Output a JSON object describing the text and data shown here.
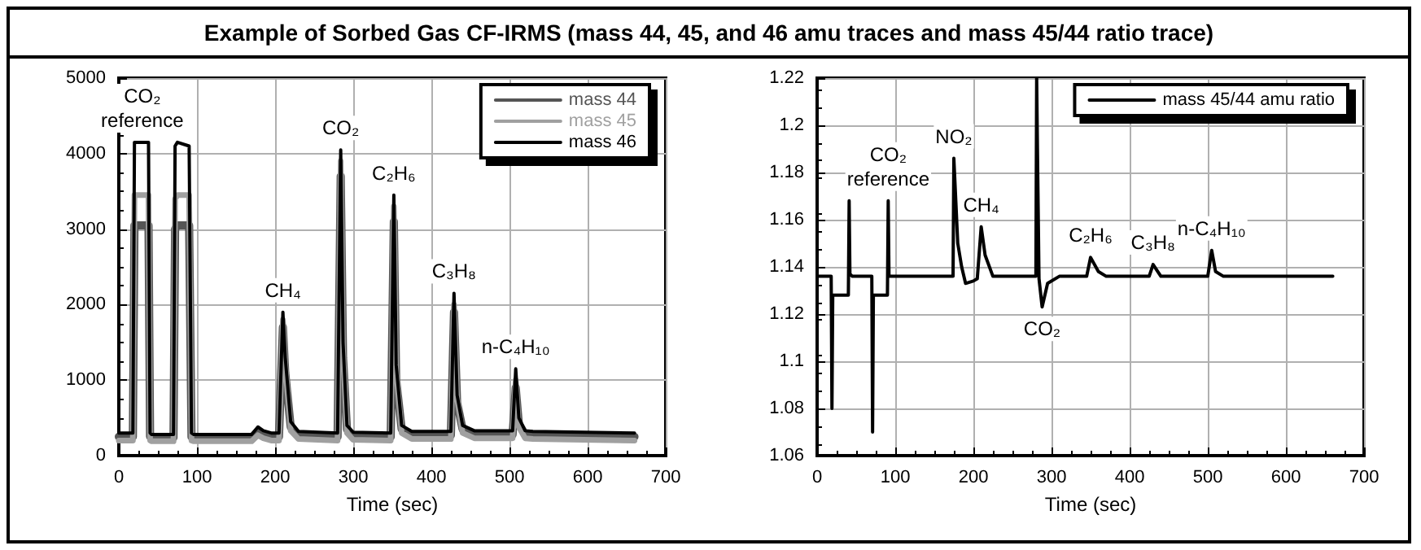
{
  "chart_data": [
    {
      "type": "line",
      "title": "Example of Sorbed Gas CF-IRMS (mass 44, 45, and 46 amu traces and mass 45/44 ratio trace)",
      "xlabel": "Time (sec)",
      "xlim": [
        0,
        700
      ],
      "xticks": [
        0,
        100,
        200,
        300,
        400,
        500,
        600,
        700
      ],
      "ylim": [
        0,
        5000
      ],
      "yticks": [
        0,
        1000,
        2000,
        3000,
        4000,
        5000
      ],
      "grid": true,
      "legend": "top right",
      "marker": "none",
      "line_style": "solid",
      "series": [
        {
          "name": "mass 44",
          "color": "#555555",
          "x": [
            0,
            18,
            20,
            22,
            38,
            40,
            42,
            70,
            72,
            75,
            90,
            93,
            96,
            170,
            178,
            185,
            195,
            205,
            210,
            213,
            220,
            230,
            280,
            284,
            287,
            292,
            300,
            348,
            352,
            355,
            362,
            375,
            425,
            429,
            433,
            440,
            455,
            504,
            508,
            512,
            520,
            530,
            660
          ],
          "values": [
            250,
            250,
            3050,
            3050,
            3050,
            250,
            240,
            240,
            3000,
            3050,
            3050,
            250,
            240,
            240,
            320,
            280,
            250,
            250,
            1700,
            1100,
            380,
            270,
            250,
            3700,
            1300,
            350,
            260,
            250,
            3100,
            1000,
            350,
            270,
            270,
            1900,
            700,
            350,
            280,
            280,
            900,
            420,
            280,
            270,
            250
          ]
        },
        {
          "name": "mass 45",
          "color": "#a0a0a0",
          "x": [
            0,
            18,
            20,
            22,
            38,
            40,
            42,
            70,
            72,
            75,
            90,
            93,
            96,
            170,
            178,
            185,
            195,
            205,
            210,
            213,
            220,
            230,
            280,
            284,
            287,
            292,
            300,
            348,
            352,
            355,
            362,
            375,
            425,
            429,
            433,
            440,
            455,
            504,
            508,
            512,
            520,
            530,
            660
          ],
          "values": [
            200,
            200,
            3450,
            3450,
            3450,
            200,
            190,
            190,
            3400,
            3450,
            3450,
            200,
            190,
            190,
            270,
            230,
            200,
            200,
            1800,
            1200,
            330,
            220,
            200,
            3900,
            1400,
            300,
            210,
            200,
            3300,
            1100,
            300,
            220,
            220,
            2000,
            750,
            300,
            230,
            230,
            1000,
            380,
            230,
            220,
            200
          ]
        },
        {
          "name": "mass 46",
          "color": "#000000",
          "x": [
            0,
            18,
            20,
            22,
            38,
            40,
            42,
            70,
            72,
            75,
            90,
            93,
            96,
            170,
            178,
            185,
            195,
            205,
            210,
            213,
            220,
            230,
            280,
            284,
            287,
            292,
            300,
            348,
            352,
            355,
            362,
            375,
            425,
            429,
            433,
            440,
            455,
            504,
            508,
            512,
            520,
            530,
            660
          ],
          "values": [
            300,
            300,
            4150,
            4150,
            4150,
            300,
            280,
            280,
            4100,
            4150,
            4100,
            300,
            280,
            280,
            380,
            330,
            300,
            300,
            1900,
            1300,
            450,
            320,
            300,
            4050,
            1500,
            400,
            310,
            300,
            3450,
            1200,
            400,
            320,
            320,
            2150,
            800,
            400,
            330,
            330,
            1150,
            500,
            330,
            320,
            300
          ]
        }
      ],
      "annotations": [
        {
          "text": "CO₂\nreference",
          "x": 30,
          "y": 4150
        },
        {
          "text": "CH₄",
          "x": 210,
          "y": 1900
        },
        {
          "text": "CO₂",
          "x": 284,
          "y": 4050
        },
        {
          "text": "C₂H₆",
          "x": 352,
          "y": 3450
        },
        {
          "text": "C₃H₈",
          "x": 429,
          "y": 2150
        },
        {
          "text": "n-C₄H₁₀",
          "x": 508,
          "y": 1150
        }
      ]
    },
    {
      "type": "line",
      "xlabel": "Time (sec)",
      "xlim": [
        0,
        700
      ],
      "xticks": [
        0,
        100,
        200,
        300,
        400,
        500,
        600,
        700
      ],
      "ylim": [
        1.06,
        1.22
      ],
      "yticks": [
        1.06,
        1.08,
        1.1,
        1.12,
        1.14,
        1.16,
        1.18,
        1.2,
        1.22
      ],
      "grid": true,
      "legend": "top right",
      "marker": "none",
      "line_style": "solid",
      "series": [
        {
          "name": "mass 45/44 amu ratio",
          "color": "#000000",
          "x": [
            0,
            18,
            19,
            20,
            22,
            40,
            41,
            42,
            45,
            70,
            71,
            72,
            74,
            90,
            91,
            92,
            95,
            170,
            174,
            175,
            180,
            185,
            190,
            200,
            205,
            210,
            215,
            225,
            280,
            281,
            282,
            284,
            288,
            295,
            310,
            345,
            350,
            360,
            370,
            425,
            430,
            440,
            500,
            505,
            510,
            520,
            660
          ],
          "values": [
            1.136,
            1.136,
            1.08,
            1.128,
            1.128,
            1.128,
            1.168,
            1.137,
            1.136,
            1.136,
            1.07,
            1.128,
            1.128,
            1.128,
            1.168,
            1.136,
            1.136,
            1.136,
            1.136,
            1.186,
            1.15,
            1.14,
            1.133,
            1.134,
            1.135,
            1.157,
            1.145,
            1.136,
            1.136,
            1.22,
            1.19,
            1.135,
            1.123,
            1.133,
            1.136,
            1.136,
            1.144,
            1.138,
            1.136,
            1.136,
            1.141,
            1.136,
            1.136,
            1.147,
            1.138,
            1.136,
            1.136
          ]
        }
      ],
      "annotations": [
        {
          "text": "CO₂\nreference",
          "x": 91,
          "y": 1.168
        },
        {
          "text": "NO₂",
          "x": 175,
          "y": 1.186
        },
        {
          "text": "CH₄",
          "x": 210,
          "y": 1.157
        },
        {
          "text": "CO₂",
          "x": 288,
          "y": 1.123
        },
        {
          "text": "C₂H₆",
          "x": 350,
          "y": 1.144
        },
        {
          "text": "C₃H₈",
          "x": 430,
          "y": 1.141
        },
        {
          "text": "n-C₄H₁₀",
          "x": 505,
          "y": 1.147
        }
      ]
    }
  ]
}
